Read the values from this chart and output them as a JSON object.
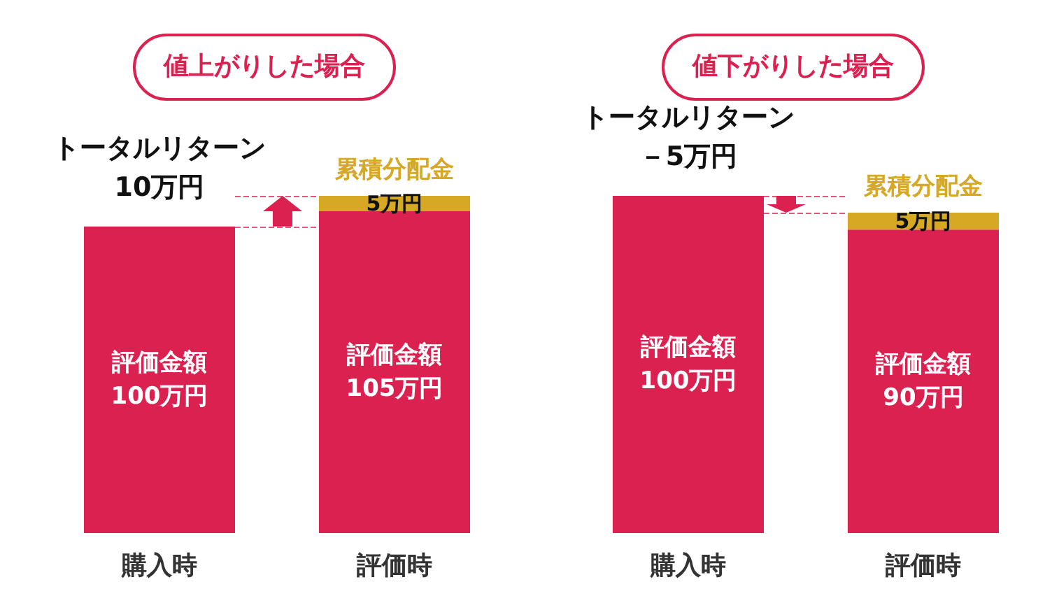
{
  "chart_data": [
    {
      "type": "bar",
      "title": "値上がりした場合",
      "categories": [
        "購入時",
        "評価時"
      ],
      "stacked": true,
      "legend": false,
      "grid": false,
      "tick_labels": "x",
      "series": [
        {
          "name": "評価金額",
          "color": "#db2150",
          "values": [
            100,
            105
          ],
          "value_labels": [
            "100万円",
            "105万円"
          ]
        },
        {
          "name": "累積分配金",
          "color": "#d6a823",
          "values": [
            null,
            5
          ],
          "value_labels": [
            null,
            "5万円"
          ]
        }
      ],
      "ref_lines": [
        {
          "axis": "y",
          "value": 100,
          "color": "#e8557a",
          "line_style": "dashed"
        },
        {
          "axis": "y",
          "value": 110,
          "color": "#e8557a",
          "line_style": "dashed"
        }
      ],
      "annotations": [
        "トータルリターン",
        "10万円"
      ]
    },
    {
      "type": "bar",
      "title": "値下がりした場合",
      "categories": [
        "購入時",
        "評価時"
      ],
      "stacked": true,
      "legend": false,
      "grid": false,
      "tick_labels": "x",
      "series": [
        {
          "name": "評価金額",
          "color": "#db2150",
          "values": [
            100,
            90
          ],
          "value_labels": [
            "100万円",
            "90万円"
          ]
        },
        {
          "name": "累積分配金",
          "color": "#d6a823",
          "values": [
            null,
            5
          ],
          "value_labels": [
            null,
            "5万円"
          ]
        }
      ],
      "ref_lines": [
        {
          "axis": "y",
          "value": 100,
          "color": "#e8557a",
          "line_style": "dashed"
        },
        {
          "axis": "y",
          "value": 95,
          "color": "#e8557a",
          "line_style": "dashed"
        }
      ],
      "annotations": [
        "トータルリターン",
        "－5万円"
      ]
    }
  ]
}
